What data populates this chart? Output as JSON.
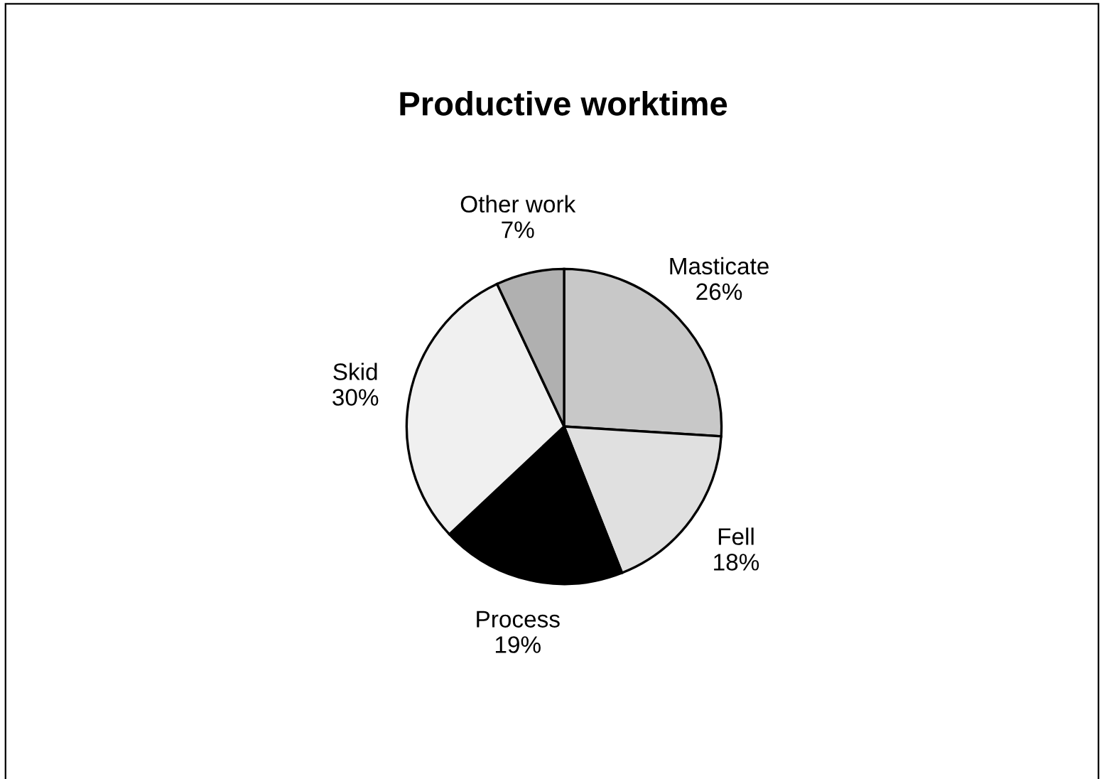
{
  "chart_data": {
    "type": "pie",
    "title": "Productive worktime",
    "categories": [
      "Masticate",
      "Fell",
      "Process",
      "Skid",
      "Other work"
    ],
    "values": [
      26,
      18,
      19,
      30,
      7
    ],
    "value_labels": [
      "26%",
      "18%",
      "19%",
      "30%",
      "7%"
    ],
    "colors": [
      "#c8c8c8",
      "#e0e0e0",
      "#000000",
      "#f0f0f0",
      "#b0b0b0"
    ]
  }
}
